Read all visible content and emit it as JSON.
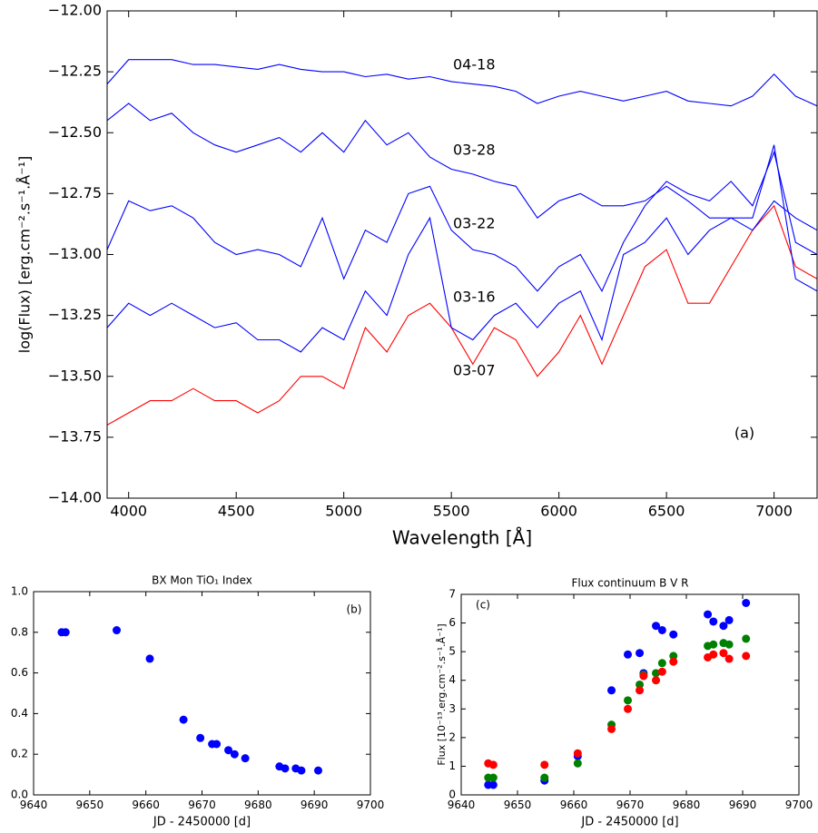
{
  "chart_data": [
    {
      "type": "line",
      "xlabel": "Wavelength [Å]",
      "ylabel": "log(Flux) [erg.cm⁻².s⁻¹.Å⁻¹]",
      "annotation": "(a)",
      "x": [
        3900,
        4000,
        4100,
        4200,
        4300,
        4400,
        4500,
        4600,
        4700,
        4800,
        4900,
        5000,
        5100,
        5200,
        5300,
        5400,
        5500,
        5600,
        5700,
        5800,
        5900,
        6000,
        6100,
        6200,
        6300,
        6400,
        6500,
        6600,
        6700,
        6800,
        6900,
        7000,
        7100,
        7200
      ],
      "xlim": [
        3900,
        7200
      ],
      "xticks": [
        4000,
        4500,
        5000,
        5500,
        6000,
        6500,
        7000
      ],
      "ylim": [
        -14,
        -12
      ],
      "yticks": [
        {
          "value": -14,
          "label": "−14.00"
        },
        {
          "value": -13.75,
          "label": "−13.75"
        },
        {
          "value": -13.5,
          "label": "−13.50"
        },
        {
          "value": -13.25,
          "label": "−13.25"
        },
        {
          "value": -13,
          "label": "−13.00"
        },
        {
          "value": -12.75,
          "label": "−12.75"
        },
        {
          "value": -12.5,
          "label": "−12.50"
        },
        {
          "value": -12.25,
          "label": "−12.25"
        },
        {
          "value": -12,
          "label": "−12.00"
        }
      ],
      "series": [
        {
          "name": "04-18",
          "color": "#0000ff",
          "values": [
            -12.3,
            -12.2,
            -12.2,
            -12.2,
            -12.22,
            -12.22,
            -12.23,
            -12.24,
            -12.22,
            -12.24,
            -12.25,
            -12.25,
            -12.27,
            -12.26,
            -12.28,
            -12.27,
            -12.29,
            -12.3,
            -12.31,
            -12.33,
            -12.38,
            -12.35,
            -12.33,
            -12.35,
            -12.37,
            -12.35,
            -12.33,
            -12.37,
            -12.38,
            -12.39,
            -12.35,
            -12.26,
            -12.35,
            -12.39
          ]
        },
        {
          "name": "03-28",
          "color": "#0000ff",
          "values": [
            -12.45,
            -12.38,
            -12.45,
            -12.42,
            -12.5,
            -12.55,
            -12.58,
            -12.55,
            -12.52,
            -12.58,
            -12.5,
            -12.58,
            -12.45,
            -12.55,
            -12.5,
            -12.6,
            -12.65,
            -12.67,
            -12.7,
            -12.72,
            -12.85,
            -12.78,
            -12.75,
            -12.8,
            -12.8,
            -12.78,
            -12.72,
            -12.78,
            -12.85,
            -12.85,
            -12.9,
            -12.78,
            -12.85,
            -12.9
          ]
        },
        {
          "name": "03-22",
          "color": "#0000ff",
          "values": [
            -12.98,
            -12.78,
            -12.82,
            -12.8,
            -12.85,
            -12.95,
            -13.0,
            -12.98,
            -13.0,
            -13.05,
            -12.85,
            -13.1,
            -12.9,
            -12.95,
            -12.75,
            -12.72,
            -12.9,
            -12.98,
            -13.0,
            -13.05,
            -13.15,
            -13.05,
            -13.0,
            -13.15,
            -12.95,
            -12.8,
            -12.7,
            -12.75,
            -12.78,
            -12.7,
            -12.8,
            -12.58,
            -12.95,
            -13.0
          ]
        },
        {
          "name": "03-16",
          "color": "#0000ff",
          "values": [
            -13.3,
            -13.2,
            -13.25,
            -13.2,
            -13.25,
            -13.3,
            -13.28,
            -13.35,
            -13.35,
            -13.4,
            -13.3,
            -13.35,
            -13.15,
            -13.25,
            -13.0,
            -12.85,
            -13.3,
            -13.35,
            -13.25,
            -13.2,
            -13.3,
            -13.2,
            -13.15,
            -13.35,
            -13.0,
            -12.95,
            -12.85,
            -13.0,
            -12.9,
            -12.85,
            -12.85,
            -12.55,
            -13.1,
            -13.15
          ]
        },
        {
          "name": "03-07",
          "color": "#ff0000",
          "values": [
            -13.7,
            -13.65,
            -13.6,
            -13.6,
            -13.55,
            -13.6,
            -13.6,
            -13.65,
            -13.6,
            -13.5,
            -13.5,
            -13.55,
            -13.3,
            -13.4,
            -13.25,
            -13.2,
            -13.3,
            -13.45,
            -13.3,
            -13.35,
            -13.5,
            -13.4,
            -13.25,
            -13.45,
            -13.25,
            -13.05,
            -12.98,
            -13.2,
            -13.2,
            -13.05,
            -12.9,
            -12.8,
            -13.05,
            -13.1
          ]
        }
      ]
    },
    {
      "type": "scatter",
      "title": "BX Mon TiO₁ Index",
      "xlabel": "JD - 2450000 [d]",
      "annotation": "(b)",
      "x": [
        9645,
        9645.7,
        9654.8,
        9660.7,
        9666.7,
        9669.7,
        9671.8,
        9672.6,
        9674.7,
        9675.8,
        9677.7,
        9683.8,
        9684.8,
        9686.7,
        9687.7,
        9690.7
      ],
      "xlim": [
        9640,
        9700
      ],
      "xticks": [
        9640,
        9650,
        9660,
        9670,
        9680,
        9690,
        9700
      ],
      "ylim": [
        0,
        1
      ],
      "yticks": [
        {
          "value": 0,
          "label": "0.0"
        },
        {
          "value": 0.2,
          "label": "0.2"
        },
        {
          "value": 0.4,
          "label": "0.4"
        },
        {
          "value": 0.6,
          "label": "0.6"
        },
        {
          "value": 0.8,
          "label": "0.8"
        },
        {
          "value": 1,
          "label": "1.0"
        }
      ],
      "series": [
        {
          "color": "#0000ff",
          "values": [
            0.8,
            0.8,
            0.81,
            0.67,
            0.37,
            0.28,
            0.25,
            0.25,
            0.22,
            0.2,
            0.18,
            0.14,
            0.13,
            0.13,
            0.12,
            0.12
          ]
        }
      ]
    },
    {
      "type": "scatter",
      "title": "Flux continuum B V R",
      "xlabel": "JD - 2450000 [d]",
      "ylabel": "Flux [10⁻¹³.erg.cm⁻².s⁻¹.Å⁻¹]",
      "annotation": "(c)",
      "x": [
        9644.8,
        9645.7,
        9654.8,
        9660.7,
        9666.7,
        9669.6,
        9671.7,
        9672.4,
        9674.6,
        9675.7,
        9677.7,
        9683.8,
        9684.8,
        9686.6,
        9687.6,
        9690.6
      ],
      "xlim": [
        9640,
        9700
      ],
      "xticks": [
        9640,
        9650,
        9660,
        9670,
        9680,
        9690,
        9700
      ],
      "ylim": [
        0,
        7
      ],
      "yticks": [
        0,
        1,
        2,
        3,
        4,
        5,
        6,
        7
      ],
      "series": [
        {
          "color": "#0000ff",
          "values": [
            0.35,
            0.35,
            0.5,
            1.35,
            3.65,
            4.9,
            4.95,
            4.25,
            5.9,
            5.75,
            5.6,
            6.3,
            6.05,
            5.9,
            6.1,
            6.7
          ]
        },
        {
          "color": "#008000",
          "values": [
            0.6,
            0.6,
            0.6,
            1.1,
            2.45,
            3.3,
            3.85,
            4.2,
            4.25,
            4.6,
            4.85,
            5.2,
            5.25,
            5.3,
            5.25,
            5.45
          ]
        },
        {
          "color": "#ff0000",
          "values": [
            1.1,
            1.05,
            1.05,
            1.45,
            2.3,
            3.0,
            3.65,
            4.15,
            4.0,
            4.3,
            4.65,
            4.8,
            4.9,
            4.95,
            4.75,
            4.85
          ]
        }
      ]
    }
  ]
}
